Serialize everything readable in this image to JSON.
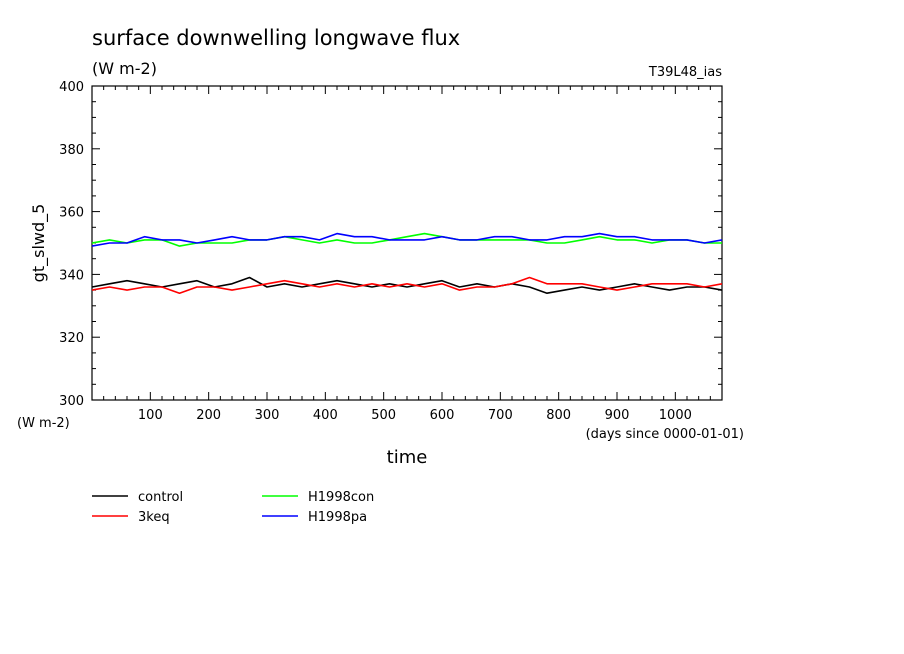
{
  "chart_data": {
    "type": "line",
    "title": "surface downwelling longwave flux",
    "subtitle": "(W m-2)",
    "tag": "T39L48_ias",
    "xlabel": "time",
    "x_unit": "(days since 0000-01-01)",
    "ylabel": "gt_slwd_5",
    "y_unit": "(W m-2)",
    "xlim": [
      0,
      1080
    ],
    "ylim": [
      300,
      400
    ],
    "x_ticks": [
      100,
      200,
      300,
      400,
      500,
      600,
      700,
      800,
      900,
      1000
    ],
    "y_ticks": [
      300,
      320,
      340,
      360,
      380,
      400
    ],
    "grid": false,
    "legend_position": "bottom-left",
    "series": [
      {
        "name": "control",
        "color": "#000000",
        "x": [
          0,
          30,
          60,
          90,
          120,
          150,
          180,
          210,
          240,
          270,
          300,
          330,
          360,
          390,
          420,
          450,
          480,
          510,
          540,
          570,
          600,
          630,
          660,
          690,
          720,
          750,
          780,
          810,
          840,
          870,
          900,
          930,
          960,
          990,
          1020,
          1050,
          1080
        ],
        "y": [
          336,
          337,
          338,
          337,
          336,
          337,
          338,
          336,
          337,
          339,
          336,
          337,
          336,
          337,
          338,
          337,
          336,
          337,
          336,
          337,
          338,
          336,
          337,
          336,
          337,
          336,
          334,
          335,
          336,
          335,
          336,
          337,
          336,
          335,
          336,
          336,
          335
        ]
      },
      {
        "name": "3keq",
        "color": "#ff0000",
        "x": [
          0,
          30,
          60,
          90,
          120,
          150,
          180,
          210,
          240,
          270,
          300,
          330,
          360,
          390,
          420,
          450,
          480,
          510,
          540,
          570,
          600,
          630,
          660,
          690,
          720,
          750,
          780,
          810,
          840,
          870,
          900,
          930,
          960,
          990,
          1020,
          1050,
          1080
        ],
        "y": [
          335,
          336,
          335,
          336,
          336,
          334,
          336,
          336,
          335,
          336,
          337,
          338,
          337,
          336,
          337,
          336,
          337,
          336,
          337,
          336,
          337,
          335,
          336,
          336,
          337,
          339,
          337,
          337,
          337,
          336,
          335,
          336,
          337,
          337,
          337,
          336,
          337
        ]
      },
      {
        "name": "H1998con",
        "color": "#00ff00",
        "x": [
          0,
          30,
          60,
          90,
          120,
          150,
          180,
          210,
          240,
          270,
          300,
          330,
          360,
          390,
          420,
          450,
          480,
          510,
          540,
          570,
          600,
          630,
          660,
          690,
          720,
          750,
          780,
          810,
          840,
          870,
          900,
          930,
          960,
          990,
          1020,
          1050,
          1080
        ],
        "y": [
          350,
          351,
          350,
          351,
          351,
          349,
          350,
          350,
          350,
          351,
          351,
          352,
          351,
          350,
          351,
          350,
          350,
          351,
          352,
          353,
          352,
          351,
          351,
          351,
          351,
          351,
          350,
          350,
          351,
          352,
          351,
          351,
          350,
          351,
          351,
          350,
          350
        ]
      },
      {
        "name": "H1998pa",
        "color": "#0000ff",
        "x": [
          0,
          30,
          60,
          90,
          120,
          150,
          180,
          210,
          240,
          270,
          300,
          330,
          360,
          390,
          420,
          450,
          480,
          510,
          540,
          570,
          600,
          630,
          660,
          690,
          720,
          750,
          780,
          810,
          840,
          870,
          900,
          930,
          960,
          990,
          1020,
          1050,
          1080
        ],
        "y": [
          349,
          350,
          350,
          352,
          351,
          351,
          350,
          351,
          352,
          351,
          351,
          352,
          352,
          351,
          353,
          352,
          352,
          351,
          351,
          351,
          352,
          351,
          351,
          352,
          352,
          351,
          351,
          352,
          352,
          353,
          352,
          352,
          351,
          351,
          351,
          350,
          351
        ]
      }
    ]
  }
}
